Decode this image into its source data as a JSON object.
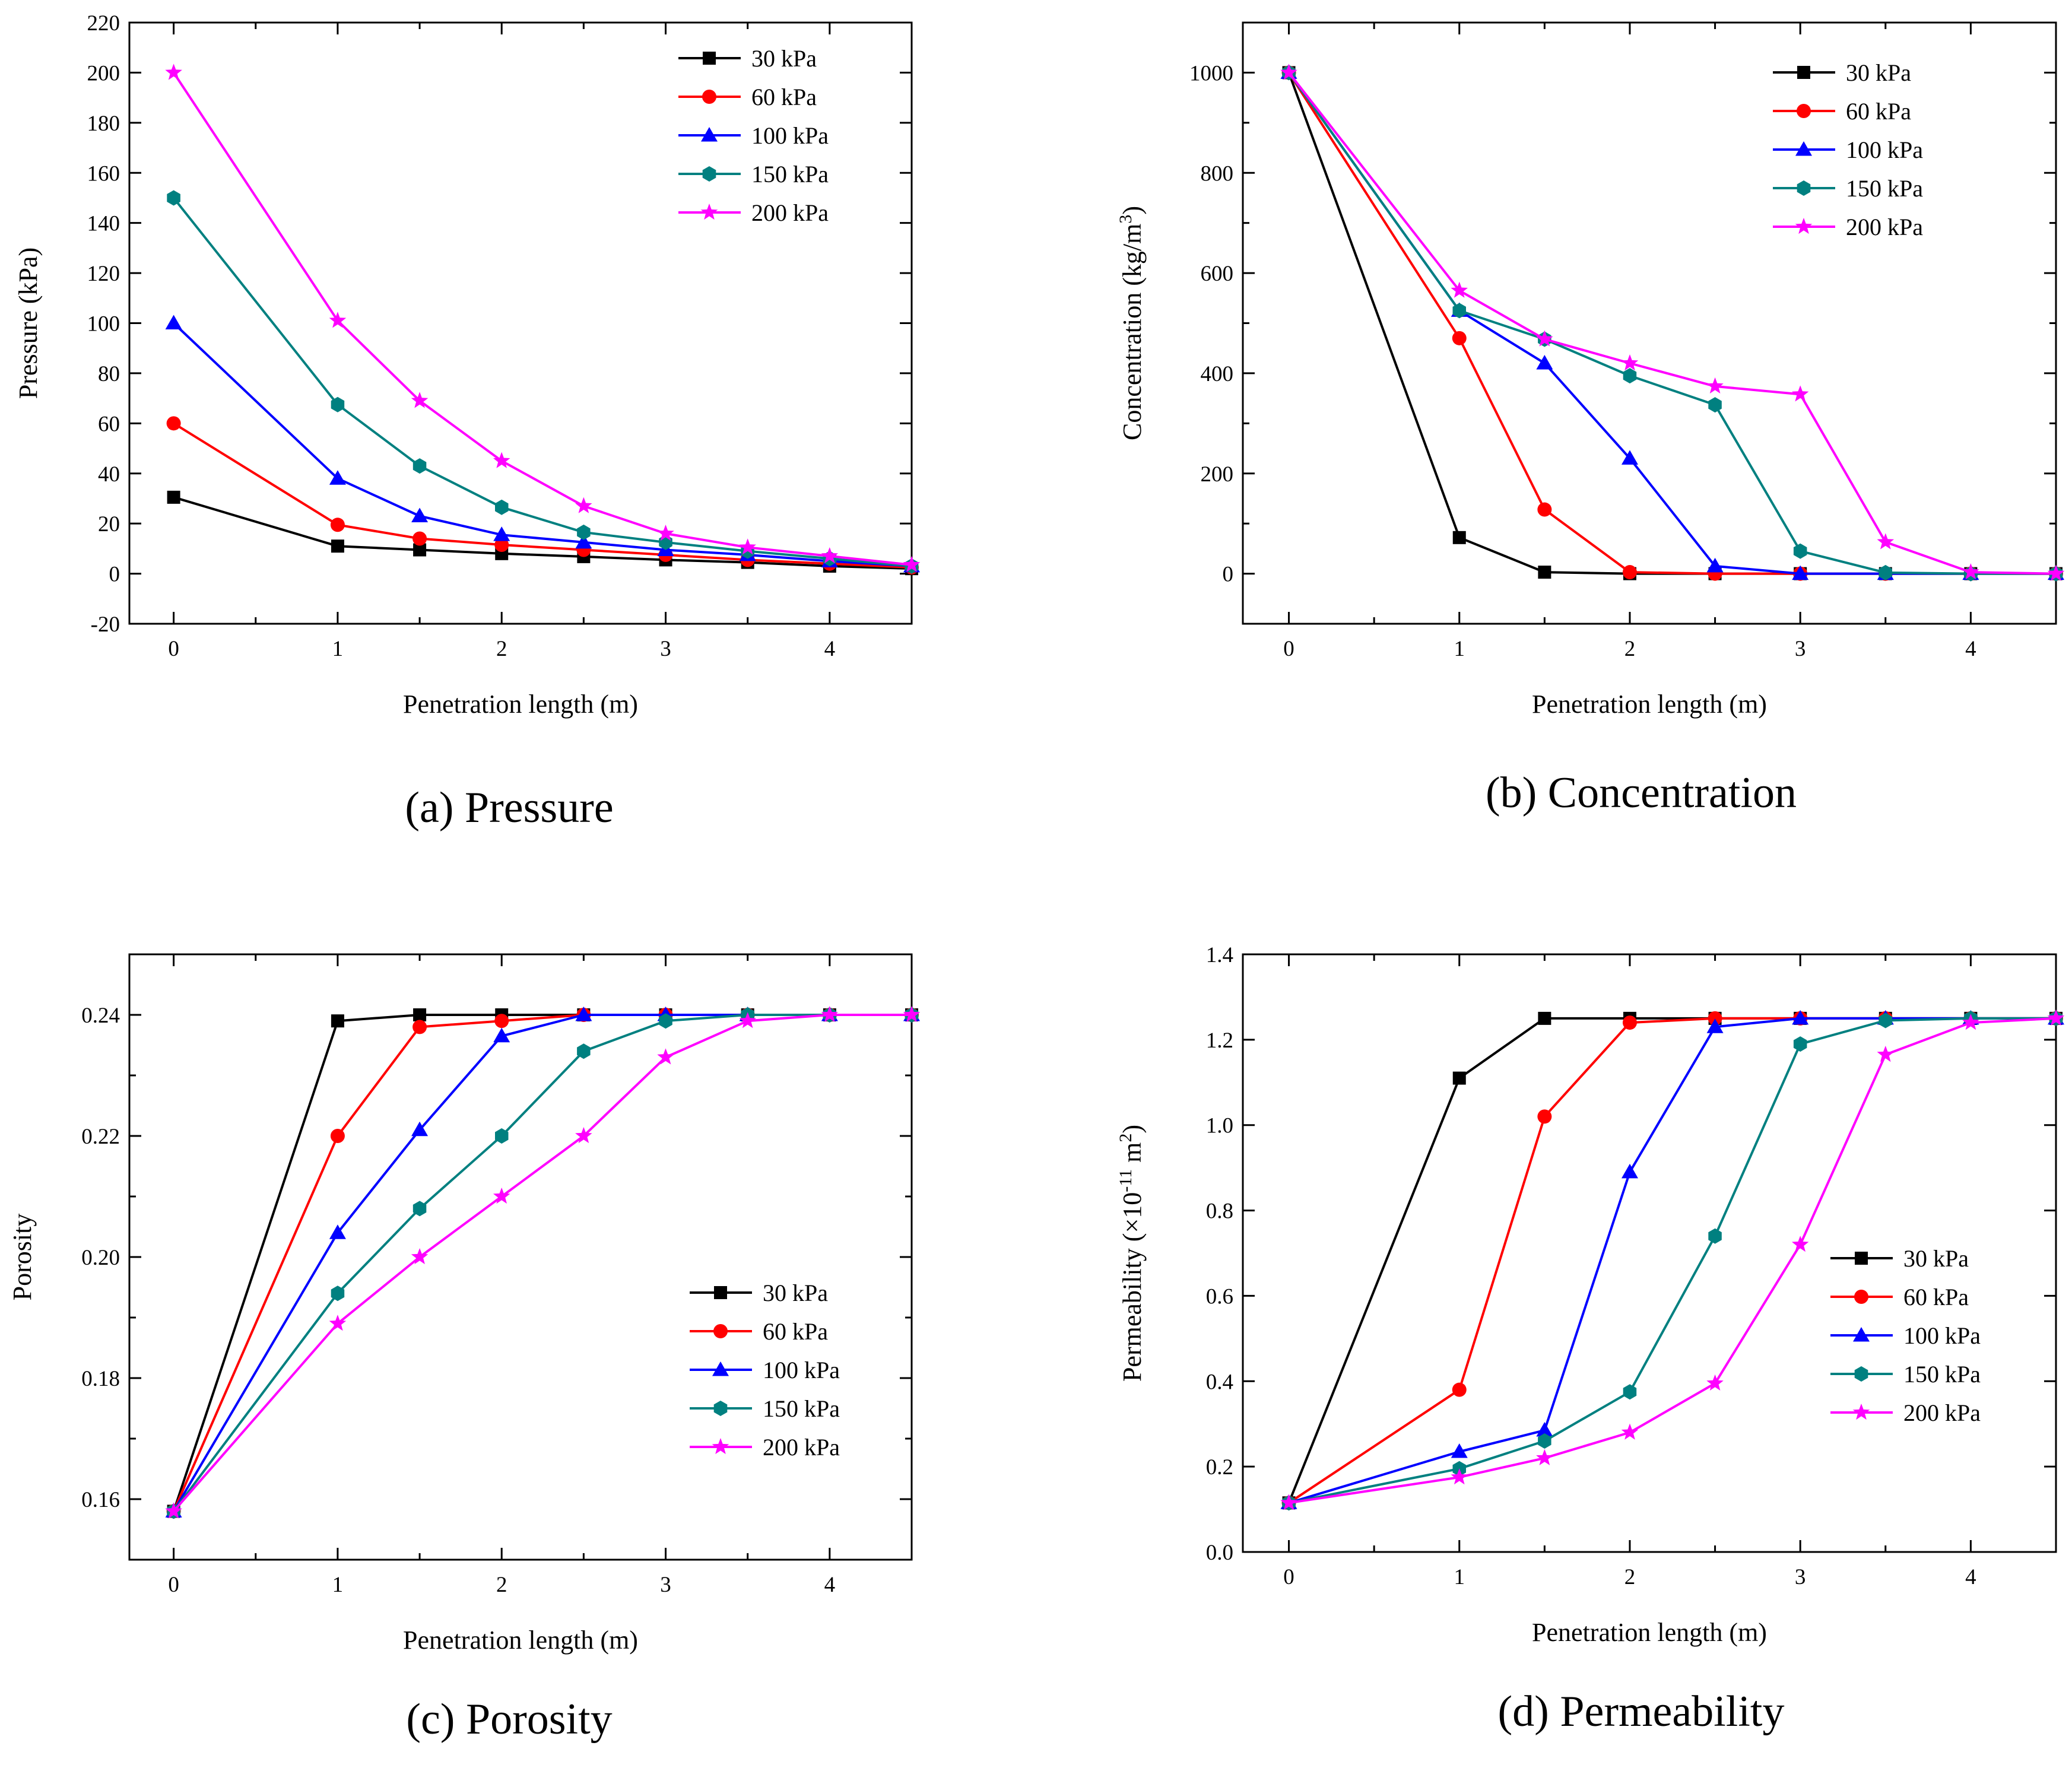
{
  "figure": {
    "colors": {
      "s30": "#000000",
      "s60": "#ff0000",
      "s100": "#0000ff",
      "s150": "#008080",
      "s200": "#ff00ff"
    }
  },
  "chart_data": [
    {
      "id": "a",
      "type": "line",
      "caption": "(a) Pressure",
      "xlabel": "Penetration length (m)",
      "ylabel": "Pressure (kPa)",
      "xlim": [
        -0.27,
        4.5
      ],
      "ylim": [
        -20,
        220
      ],
      "xticks": [
        0,
        1,
        2,
        3,
        4
      ],
      "yticks": [
        -20,
        0,
        20,
        40,
        60,
        80,
        100,
        120,
        140,
        160,
        180,
        200,
        220
      ],
      "ytick_decimals": 0,
      "legend_position": "top-right",
      "x": [
        0,
        1,
        1.5,
        2,
        2.5,
        3,
        3.5,
        4,
        4.5
      ],
      "series": [
        {
          "name": "30 kPa",
          "marker": "square",
          "values": [
            30.5,
            11,
            9.5,
            8,
            6.8,
            5.5,
            4.5,
            3,
            2
          ]
        },
        {
          "name": "60 kPa",
          "marker": "circle",
          "values": [
            60,
            19.5,
            14,
            11.5,
            9.5,
            7.5,
            5.5,
            4,
            2.5
          ]
        },
        {
          "name": "100 kPa",
          "marker": "triangle",
          "values": [
            100,
            38,
            23,
            15.5,
            12.5,
            9.5,
            7.5,
            5,
            3
          ]
        },
        {
          "name": "150 kPa",
          "marker": "hexagon",
          "values": [
            150,
            67.5,
            43,
            26.5,
            16.5,
            12.5,
            9,
            6,
            3
          ]
        },
        {
          "name": "200 kPa",
          "marker": "star",
          "values": [
            200,
            101,
            69,
            45,
            27,
            16,
            10.5,
            7,
            3.5
          ]
        }
      ]
    },
    {
      "id": "b",
      "type": "line",
      "caption": "(b) Concentration",
      "xlabel": "Penetration length (m)",
      "ylabel": "Concentration (kg/m",
      "ylabel_sup": "3",
      "ylabel_end": ")",
      "xlim": [
        -0.27,
        4.5
      ],
      "ylim": [
        -100,
        1100
      ],
      "xticks": [
        0,
        1,
        2,
        3,
        4
      ],
      "yticks": [
        0,
        200,
        400,
        600,
        800,
        1000
      ],
      "minor_yticks": [
        100,
        300,
        500,
        700,
        900
      ],
      "ytick_decimals": 0,
      "legend_position": "top-right",
      "x": [
        0,
        1,
        1.5,
        2,
        2.5,
        3,
        3.5,
        4,
        4.5
      ],
      "series": [
        {
          "name": "30 kPa",
          "marker": "square",
          "values": [
            1000,
            72,
            3,
            0,
            0,
            0,
            0,
            0,
            0
          ]
        },
        {
          "name": "60 kPa",
          "marker": "circle",
          "values": [
            1000,
            470,
            128,
            3,
            0,
            0,
            0,
            0,
            0
          ]
        },
        {
          "name": "100 kPa",
          "marker": "triangle",
          "values": [
            1000,
            525,
            420,
            230,
            15,
            0,
            0,
            0,
            0
          ]
        },
        {
          "name": "150 kPa",
          "marker": "hexagon",
          "values": [
            1000,
            525,
            468,
            395,
            337,
            45,
            2,
            0,
            0
          ]
        },
        {
          "name": "200 kPa",
          "marker": "star",
          "values": [
            1000,
            565,
            468,
            420,
            374,
            358,
            63,
            3,
            0
          ]
        }
      ]
    },
    {
      "id": "c",
      "type": "line",
      "caption": "(c) Porosity",
      "xlabel": "Penetration length (m)",
      "ylabel": "Porosity",
      "xlim": [
        -0.27,
        4.5
      ],
      "ylim": [
        0.15,
        0.25
      ],
      "xticks": [
        0,
        1,
        2,
        3,
        4
      ],
      "yticks": [
        0.16,
        0.18,
        0.2,
        0.22,
        0.24
      ],
      "minor_yticks": [
        0.17,
        0.19,
        0.21,
        0.23
      ],
      "ytick_decimals": 2,
      "legend_position": "center-right",
      "x": [
        0,
        1,
        1.5,
        2,
        2.5,
        3,
        3.5,
        4,
        4.5
      ],
      "series": [
        {
          "name": "30 kPa",
          "marker": "square",
          "values": [
            0.158,
            0.239,
            0.24,
            0.24,
            0.24,
            0.24,
            0.24,
            0.24,
            0.24
          ]
        },
        {
          "name": "60 kPa",
          "marker": "circle",
          "values": [
            0.158,
            0.22,
            0.238,
            0.239,
            0.24,
            0.24,
            0.24,
            0.24,
            0.24
          ]
        },
        {
          "name": "100 kPa",
          "marker": "triangle",
          "values": [
            0.158,
            0.204,
            0.221,
            0.2365,
            0.24,
            0.24,
            0.24,
            0.24,
            0.24
          ]
        },
        {
          "name": "150 kPa",
          "marker": "hexagon",
          "values": [
            0.158,
            0.194,
            0.208,
            0.22,
            0.234,
            0.239,
            0.24,
            0.24,
            0.24
          ]
        },
        {
          "name": "200 kPa",
          "marker": "star",
          "values": [
            0.158,
            0.189,
            0.2,
            0.21,
            0.22,
            0.233,
            0.239,
            0.24,
            0.24
          ]
        }
      ]
    },
    {
      "id": "d",
      "type": "line",
      "caption": "(d) Permeability",
      "xlabel": "Penetration length (m)",
      "ylabel": "Permeability (×10",
      "ylabel_sup": "-11",
      "ylabel_end": " m",
      "ylabel_sup2": "2",
      "ylabel_end2": ")",
      "xlim": [
        -0.27,
        4.5
      ],
      "ylim": [
        0.0,
        1.4
      ],
      "xticks": [
        0,
        1,
        2,
        3,
        4
      ],
      "yticks": [
        0.0,
        0.2,
        0.4,
        0.6,
        0.8,
        1.0,
        1.2,
        1.4
      ],
      "ytick_decimals": 1,
      "legend_position": "center-right",
      "x": [
        0,
        1,
        1.5,
        2,
        2.5,
        3,
        3.5,
        4,
        4.5
      ],
      "series": [
        {
          "name": "30 kPa",
          "marker": "square",
          "values": [
            0.115,
            1.11,
            1.25,
            1.25,
            1.25,
            1.25,
            1.25,
            1.25,
            1.25
          ]
        },
        {
          "name": "60 kPa",
          "marker": "circle",
          "values": [
            0.115,
            0.38,
            1.02,
            1.24,
            1.25,
            1.25,
            1.25,
            1.25,
            1.25
          ]
        },
        {
          "name": "100 kPa",
          "marker": "triangle",
          "values": [
            0.115,
            0.235,
            0.285,
            0.89,
            1.23,
            1.25,
            1.25,
            1.25,
            1.25
          ]
        },
        {
          "name": "150 kPa",
          "marker": "hexagon",
          "values": [
            0.115,
            0.195,
            0.26,
            0.375,
            0.74,
            1.19,
            1.245,
            1.25,
            1.25
          ]
        },
        {
          "name": "200 kPa",
          "marker": "star",
          "values": [
            0.115,
            0.175,
            0.22,
            0.28,
            0.395,
            0.72,
            1.165,
            1.24,
            1.25
          ]
        }
      ]
    }
  ]
}
